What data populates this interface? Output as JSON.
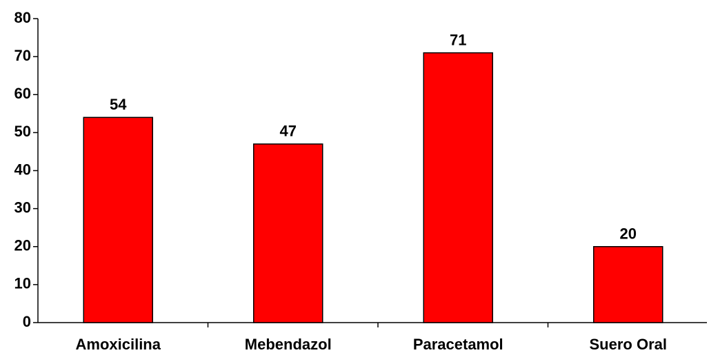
{
  "chart_data": {
    "type": "bar",
    "categories": [
      "Amoxicilina",
      "Mebendazol",
      "Paracetamol",
      "Suero Oral"
    ],
    "values": [
      54,
      47,
      71,
      20
    ],
    "color": "#ff0000",
    "ylim": [
      0,
      80
    ],
    "yticks": [
      0,
      10,
      20,
      30,
      40,
      50,
      60,
      70,
      80
    ],
    "grid": false
  }
}
